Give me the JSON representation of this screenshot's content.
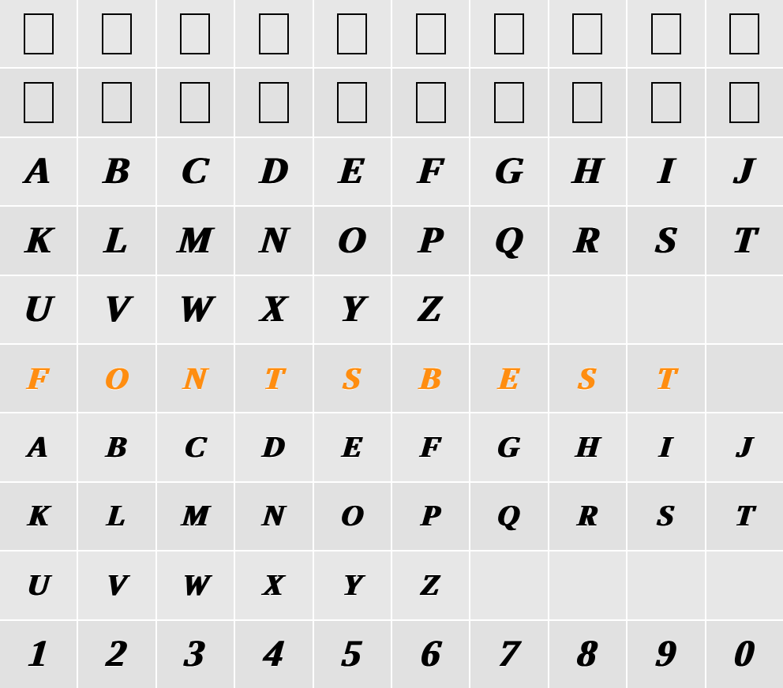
{
  "grid": {
    "cols": 10,
    "rows": 10,
    "background": "#ffffff",
    "cell_shade_a": "#e7e7e7",
    "cell_shade_b": "#e1e1e1",
    "empty_glyph": {
      "border_color": "#000000",
      "border_width": 2,
      "width": 38,
      "height": 52
    },
    "rowsData": [
      {
        "type": "empty",
        "color": "#000000",
        "fontSize": 0,
        "cells": [
          "",
          "",
          "",
          "",
          "",
          "",
          "",
          "",
          "",
          ""
        ]
      },
      {
        "type": "empty",
        "color": "#000000",
        "fontSize": 0,
        "cells": [
          "",
          "",
          "",
          "",
          "",
          "",
          "",
          "",
          "",
          ""
        ]
      },
      {
        "type": "glyph",
        "color": "#000000",
        "fontSize": 48,
        "cells": [
          "A",
          "B",
          "C",
          "D",
          "E",
          "F",
          "G",
          "H",
          "I",
          "J"
        ]
      },
      {
        "type": "glyph",
        "color": "#000000",
        "fontSize": 48,
        "cells": [
          "K",
          "L",
          "M",
          "N",
          "O",
          "P",
          "Q",
          "R",
          "S",
          "T"
        ]
      },
      {
        "type": "glyph",
        "color": "#000000",
        "fontSize": 48,
        "cells": [
          "U",
          "V",
          "W",
          "X",
          "Y",
          "Z",
          "",
          "",
          "",
          ""
        ]
      },
      {
        "type": "glyph",
        "color": "#ff8c1a",
        "fontSize": 40,
        "cells": [
          "F",
          "O",
          "N",
          "T",
          "S",
          "B",
          "E",
          "S",
          "T",
          ""
        ]
      },
      {
        "type": "glyph",
        "color": "#000000",
        "fontSize": 38,
        "cells": [
          "A",
          "B",
          "C",
          "D",
          "E",
          "F",
          "G",
          "H",
          "I",
          "J"
        ]
      },
      {
        "type": "glyph",
        "color": "#000000",
        "fontSize": 38,
        "cells": [
          "K",
          "L",
          "M",
          "N",
          "O",
          "P",
          "Q",
          "R",
          "S",
          "T"
        ]
      },
      {
        "type": "glyph",
        "color": "#000000",
        "fontSize": 38,
        "cells": [
          "U",
          "V",
          "W",
          "X",
          "Y",
          "Z",
          "",
          "",
          "",
          ""
        ]
      },
      {
        "type": "glyph",
        "color": "#000000",
        "fontSize": 48,
        "cells": [
          "1",
          "2",
          "3",
          "4",
          "5",
          "6",
          "7",
          "8",
          "9",
          "0"
        ]
      }
    ]
  }
}
